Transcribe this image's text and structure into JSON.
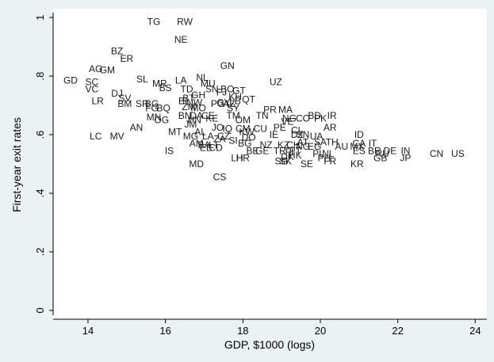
{
  "chart_data": {
    "type": "scatter",
    "title": "",
    "xlabel": "GDP, $1000 (logs)",
    "ylabel": "First-year exit rates",
    "xlim": [
      13.1,
      24.3
    ],
    "ylim": [
      -0.03,
      1.03
    ],
    "xticks": [
      14,
      16,
      18,
      20,
      22,
      24
    ],
    "yticks": [
      0,
      0.2,
      0.4,
      0.6,
      0.8,
      1
    ],
    "ytick_labels": [
      "0",
      ".2",
      ".4",
      ".6",
      ".8",
      "1"
    ],
    "grid": false,
    "legend": "none",
    "points": [
      {
        "label": "TG",
        "x": 15.7,
        "y": 0.985
      },
      {
        "label": "RW",
        "x": 16.5,
        "y": 0.985
      },
      {
        "label": "NE",
        "x": 16.4,
        "y": 0.925
      },
      {
        "label": "BZ",
        "x": 14.75,
        "y": 0.885
      },
      {
        "label": "ER",
        "x": 15.0,
        "y": 0.86
      },
      {
        "label": "GN",
        "x": 17.6,
        "y": 0.835
      },
      {
        "label": "AG",
        "x": 14.2,
        "y": 0.825
      },
      {
        "label": "GM",
        "x": 14.5,
        "y": 0.82
      },
      {
        "label": "UZ",
        "x": 18.85,
        "y": 0.78
      },
      {
        "label": "GD",
        "x": 13.55,
        "y": 0.785
      },
      {
        "label": "SC",
        "x": 14.1,
        "y": 0.78
      },
      {
        "label": "SL",
        "x": 15.4,
        "y": 0.79
      },
      {
        "label": "LA",
        "x": 16.4,
        "y": 0.785
      },
      {
        "label": "NL",
        "x": 16.95,
        "y": 0.795
      },
      {
        "label": "MU",
        "x": 17.1,
        "y": 0.775
      },
      {
        "label": "MR",
        "x": 15.85,
        "y": 0.775
      },
      {
        "label": "VC",
        "x": 14.1,
        "y": 0.755
      },
      {
        "label": "BS",
        "x": 16.0,
        "y": 0.76
      },
      {
        "label": "TD",
        "x": 16.55,
        "y": 0.755
      },
      {
        "label": "SN",
        "x": 17.2,
        "y": 0.755
      },
      {
        "label": "BO",
        "x": 17.6,
        "y": 0.755
      },
      {
        "label": "GT",
        "x": 17.9,
        "y": 0.75
      },
      {
        "label": "FJ",
        "x": 17.45,
        "y": 0.745
      },
      {
        "label": "DJ",
        "x": 14.75,
        "y": 0.74
      },
      {
        "label": "LR",
        "x": 14.25,
        "y": 0.715
      },
      {
        "label": "SV",
        "x": 14.95,
        "y": 0.725
      },
      {
        "label": "GH",
        "x": 16.85,
        "y": 0.735
      },
      {
        "label": "BT",
        "x": 16.6,
        "y": 0.725
      },
      {
        "label": "KH",
        "x": 17.8,
        "y": 0.73
      },
      {
        "label": "BI",
        "x": 16.45,
        "y": 0.715
      },
      {
        "label": "NW",
        "x": 16.75,
        "y": 0.71
      },
      {
        "label": "QT",
        "x": 18.15,
        "y": 0.72
      },
      {
        "label": "LB",
        "x": 17.8,
        "y": 0.715
      },
      {
        "label": "GY",
        "x": 17.5,
        "y": 0.71
      },
      {
        "label": "BM",
        "x": 14.95,
        "y": 0.705
      },
      {
        "label": "SR",
        "x": 15.4,
        "y": 0.705
      },
      {
        "label": "BG",
        "x": 15.65,
        "y": 0.705
      },
      {
        "label": "FG",
        "x": 15.65,
        "y": 0.69
      },
      {
        "label": "BQ",
        "x": 15.95,
        "y": 0.69
      },
      {
        "label": "ZM",
        "x": 16.6,
        "y": 0.695
      },
      {
        "label": "MO",
        "x": 16.85,
        "y": 0.69
      },
      {
        "label": "PG",
        "x": 17.35,
        "y": 0.705
      },
      {
        "label": "AZ",
        "x": 17.65,
        "y": 0.705
      },
      {
        "label": "SY",
        "x": 17.75,
        "y": 0.69
      },
      {
        "label": "PR",
        "x": 18.7,
        "y": 0.685
      },
      {
        "label": "MA",
        "x": 19.1,
        "y": 0.685
      },
      {
        "label": "BN",
        "x": 16.5,
        "y": 0.665
      },
      {
        "label": "DA",
        "x": 16.8,
        "y": 0.665
      },
      {
        "label": "CE",
        "x": 17.1,
        "y": 0.665
      },
      {
        "label": "TM",
        "x": 17.75,
        "y": 0.665
      },
      {
        "label": "TN",
        "x": 18.5,
        "y": 0.665
      },
      {
        "label": "BD",
        "x": 19.85,
        "y": 0.665
      },
      {
        "label": "IR",
        "x": 20.3,
        "y": 0.665
      },
      {
        "label": "MN",
        "x": 15.7,
        "y": 0.66
      },
      {
        "label": "OG",
        "x": 15.9,
        "y": 0.65
      },
      {
        "label": "HN",
        "x": 16.75,
        "y": 0.65
      },
      {
        "label": "KE",
        "x": 17.2,
        "y": 0.655
      },
      {
        "label": "OM",
        "x": 18.0,
        "y": 0.65
      },
      {
        "label": "NG",
        "x": 19.2,
        "y": 0.655
      },
      {
        "label": "CO",
        "x": 19.55,
        "y": 0.655
      },
      {
        "label": "PK",
        "x": 20.0,
        "y": 0.655
      },
      {
        "label": "JM",
        "x": 16.65,
        "y": 0.635
      },
      {
        "label": "VE",
        "x": 19.15,
        "y": 0.645
      },
      {
        "label": "AN",
        "x": 15.25,
        "y": 0.625
      },
      {
        "label": "PE",
        "x": 18.95,
        "y": 0.625
      },
      {
        "label": "CU",
        "x": 18.45,
        "y": 0.62
      },
      {
        "label": "AR",
        "x": 20.25,
        "y": 0.625
      },
      {
        "label": "JO",
        "x": 17.35,
        "y": 0.625
      },
      {
        "label": "IQ",
        "x": 17.6,
        "y": 0.62
      },
      {
        "label": "CM",
        "x": 18.0,
        "y": 0.62
      },
      {
        "label": "MT",
        "x": 16.25,
        "y": 0.61
      },
      {
        "label": "AL",
        "x": 16.9,
        "y": 0.61
      },
      {
        "label": "KW",
        "x": 18.1,
        "y": 0.61
      },
      {
        "label": "CL",
        "x": 19.4,
        "y": 0.615
      },
      {
        "label": "IE",
        "x": 18.8,
        "y": 0.6
      },
      {
        "label": "DZ",
        "x": 19.4,
        "y": 0.6
      },
      {
        "label": "SN",
        "x": 19.55,
        "y": 0.6
      },
      {
        "label": "UA",
        "x": 19.9,
        "y": 0.595
      },
      {
        "label": "LC",
        "x": 14.2,
        "y": 0.595
      },
      {
        "label": "MV",
        "x": 14.75,
        "y": 0.595
      },
      {
        "label": "ID",
        "x": 21.0,
        "y": 0.6
      },
      {
        "label": "MG",
        "x": 16.65,
        "y": 0.595
      },
      {
        "label": "LA",
        "x": 17.1,
        "y": 0.595
      },
      {
        "label": "CZ",
        "x": 17.5,
        "y": 0.595
      },
      {
        "label": "DO",
        "x": 18.15,
        "y": 0.59
      },
      {
        "label": "ZA",
        "x": 17.4,
        "y": 0.585
      },
      {
        "label": "SI",
        "x": 17.75,
        "y": 0.58
      },
      {
        "label": "AT",
        "x": 19.55,
        "y": 0.575
      },
      {
        "label": "SA",
        "x": 20.0,
        "y": 0.575
      },
      {
        "label": "TH",
        "x": 20.3,
        "y": 0.575
      },
      {
        "label": "CA",
        "x": 21.0,
        "y": 0.57
      },
      {
        "label": "IT",
        "x": 21.35,
        "y": 0.57
      },
      {
        "label": "AM",
        "x": 16.8,
        "y": 0.57
      },
      {
        "label": "BA",
        "x": 17.0,
        "y": 0.565
      },
      {
        "label": "LT",
        "x": 17.25,
        "y": 0.565
      },
      {
        "label": "BG",
        "x": 18.05,
        "y": 0.57
      },
      {
        "label": "NZ",
        "x": 18.6,
        "y": 0.565
      },
      {
        "label": "KZ",
        "x": 19.05,
        "y": 0.565
      },
      {
        "label": "CH",
        "x": 19.3,
        "y": 0.565
      },
      {
        "label": "NG",
        "x": 19.55,
        "y": 0.56
      },
      {
        "label": "EG",
        "x": 19.85,
        "y": 0.56
      },
      {
        "label": "AU",
        "x": 20.55,
        "y": 0.56
      },
      {
        "label": "MX",
        "x": 20.95,
        "y": 0.56
      },
      {
        "label": "EE",
        "x": 17.05,
        "y": 0.555
      },
      {
        "label": "CD",
        "x": 17.3,
        "y": 0.555
      },
      {
        "label": "BE",
        "x": 18.25,
        "y": 0.545
      },
      {
        "label": "GE",
        "x": 18.5,
        "y": 0.545
      },
      {
        "label": "TR",
        "x": 18.95,
        "y": 0.545
      },
      {
        "label": "FI",
        "x": 19.2,
        "y": 0.54
      },
      {
        "label": "PT",
        "x": 19.35,
        "y": 0.545
      },
      {
        "label": "DE",
        "x": 21.8,
        "y": 0.545
      },
      {
        "label": "ES",
        "x": 21.0,
        "y": 0.545
      },
      {
        "label": "BR",
        "x": 21.4,
        "y": 0.545
      },
      {
        "label": "IS",
        "x": 16.1,
        "y": 0.545
      },
      {
        "label": "IN",
        "x": 22.2,
        "y": 0.545
      },
      {
        "label": "CN",
        "x": 23.0,
        "y": 0.535
      },
      {
        "label": "US",
        "x": 23.55,
        "y": 0.535
      },
      {
        "label": "PL",
        "x": 19.95,
        "y": 0.535
      },
      {
        "label": "NL",
        "x": 20.2,
        "y": 0.535
      },
      {
        "label": "HK",
        "x": 19.35,
        "y": 0.53
      },
      {
        "label": "DK",
        "x": 19.15,
        "y": 0.525
      },
      {
        "label": "RU",
        "x": 21.6,
        "y": 0.535
      },
      {
        "label": "GB",
        "x": 21.55,
        "y": 0.52
      },
      {
        "label": "JP",
        "x": 22.2,
        "y": 0.52
      },
      {
        "label": "LH",
        "x": 17.85,
        "y": 0.52
      },
      {
        "label": "HR",
        "x": 18.0,
        "y": 0.52
      },
      {
        "label": "PH",
        "x": 20.1,
        "y": 0.52
      },
      {
        "label": "SG",
        "x": 19.0,
        "y": 0.51
      },
      {
        "label": "SK",
        "x": 19.1,
        "y": 0.51
      },
      {
        "label": "FR",
        "x": 20.25,
        "y": 0.51
      },
      {
        "label": "SE",
        "x": 19.65,
        "y": 0.5
      },
      {
        "label": "KR",
        "x": 20.95,
        "y": 0.5
      },
      {
        "label": "MD",
        "x": 16.8,
        "y": 0.5
      },
      {
        "label": "CS",
        "x": 17.4,
        "y": 0.455
      }
    ]
  }
}
